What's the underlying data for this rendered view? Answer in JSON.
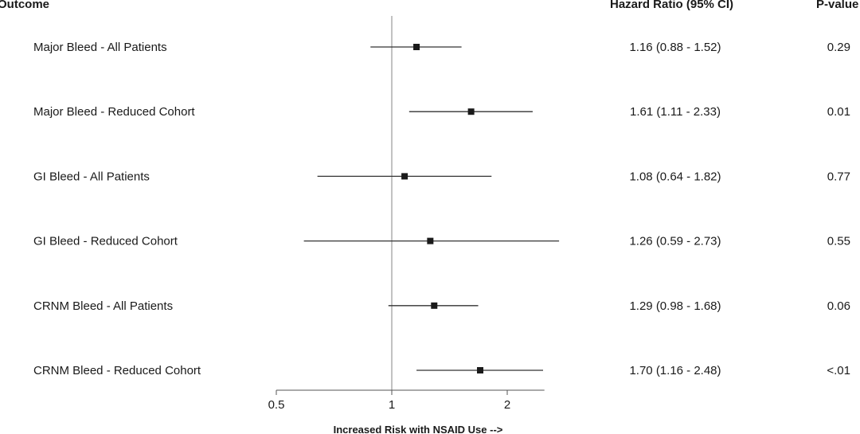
{
  "headers": {
    "outcome": "Outcome",
    "hazard_ratio": "Hazard Ratio (95% CI)",
    "p_value": "P-value"
  },
  "chart_data": {
    "type": "forest",
    "xlabel": "Increased Risk with NSAID Use -->",
    "x_scale": "log2",
    "x_ticks": [
      0.5,
      1,
      2
    ],
    "x_tick_labels": [
      "0.5",
      "1",
      "2"
    ],
    "xlim": [
      0.5,
      2.5
    ],
    "reference_line": 1,
    "rows": [
      {
        "label": "Major Bleed - All Patients",
        "hr": 1.16,
        "lo": 0.88,
        "hi": 1.52,
        "hr_text": "1.16 (0.88 - 1.52)",
        "p": "0.29"
      },
      {
        "label": "Major Bleed - Reduced Cohort",
        "hr": 1.61,
        "lo": 1.11,
        "hi": 2.33,
        "hr_text": "1.61 (1.11 - 2.33)",
        "p": "0.01"
      },
      {
        "label": "GI Bleed - All Patients",
        "hr": 1.08,
        "lo": 0.64,
        "hi": 1.82,
        "hr_text": "1.08 (0.64 - 1.82)",
        "p": "0.77"
      },
      {
        "label": "GI Bleed - Reduced Cohort",
        "hr": 1.26,
        "lo": 0.59,
        "hi": 2.73,
        "hr_text": "1.26 (0.59 - 2.73)",
        "p": "0.55"
      },
      {
        "label": "CRNM Bleed - All Patients",
        "hr": 1.29,
        "lo": 0.98,
        "hi": 1.68,
        "hr_text": "1.29 (0.98 - 1.68)",
        "p": "0.06"
      },
      {
        "label": "CRNM Bleed - Reduced Cohort",
        "hr": 1.7,
        "lo": 1.16,
        "hi": 2.48,
        "hr_text": "1.70 (1.16 - 2.48)",
        "p": "<.01"
      }
    ]
  },
  "colors": {
    "marker": "#1a1a1a",
    "ci_line": "#333333",
    "ref_line": "#999999",
    "axis": "#555555"
  }
}
